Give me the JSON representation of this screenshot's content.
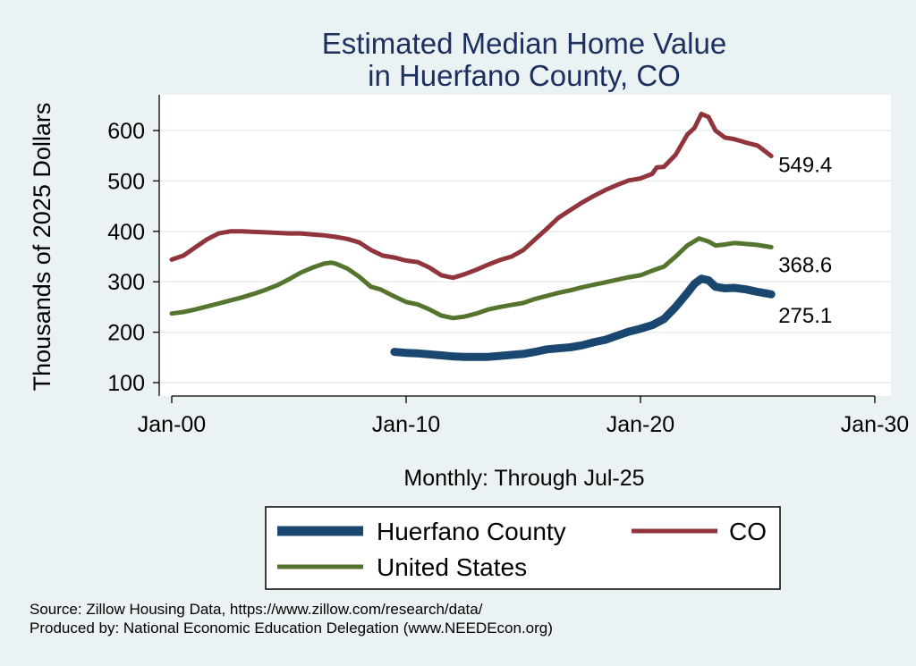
{
  "colors": {
    "huerfano": "#1a476f",
    "co": "#90353b",
    "us": "#55752f",
    "title": "#1d2f5e",
    "background": "#eaf2f3",
    "plot_background": "#ffffff"
  },
  "chart_data": {
    "type": "line",
    "title": [
      "Estimated Median Home Value",
      "in Huerfano County, CO"
    ],
    "ylabel": "Thousands of 2025 Dollars",
    "xlabel": "Monthly: Through Jul-25",
    "ylim": [
      78,
      660
    ],
    "yticks": [
      100,
      200,
      300,
      400,
      500,
      600
    ],
    "xlim": [
      2000,
      2030.8
    ],
    "xticks": [
      {
        "value": 2000,
        "label": "Jan-00"
      },
      {
        "value": 2010,
        "label": "Jan-10"
      },
      {
        "value": 2020,
        "label": "Jan-20"
      },
      {
        "value": 2030,
        "label": "Jan-30"
      }
    ],
    "grid": true,
    "legend_position": "bottom",
    "series": [
      {
        "name": "Huerfano County",
        "color": "#1a476f",
        "end_label": "275.1",
        "points": [
          [
            2009.5,
            161
          ],
          [
            2010.0,
            159
          ],
          [
            2010.5,
            158
          ],
          [
            2011.0,
            156
          ],
          [
            2011.5,
            154
          ],
          [
            2012.0,
            152
          ],
          [
            2012.5,
            151
          ],
          [
            2013.0,
            151
          ],
          [
            2013.5,
            151
          ],
          [
            2014.0,
            153
          ],
          [
            2014.5,
            155
          ],
          [
            2015.0,
            157
          ],
          [
            2015.5,
            161
          ],
          [
            2016.0,
            166
          ],
          [
            2016.5,
            168
          ],
          [
            2017.0,
            170
          ],
          [
            2017.5,
            174
          ],
          [
            2018.0,
            180
          ],
          [
            2018.5,
            185
          ],
          [
            2019.0,
            193
          ],
          [
            2019.5,
            201
          ],
          [
            2020.0,
            207
          ],
          [
            2020.5,
            214
          ],
          [
            2021.0,
            226
          ],
          [
            2021.5,
            250
          ],
          [
            2022.0,
            278
          ],
          [
            2022.3,
            296
          ],
          [
            2022.6,
            306
          ],
          [
            2022.9,
            303
          ],
          [
            2023.2,
            290
          ],
          [
            2023.6,
            287
          ],
          [
            2024.0,
            288
          ],
          [
            2024.5,
            285
          ],
          [
            2025.0,
            280
          ],
          [
            2025.58,
            275.1
          ]
        ]
      },
      {
        "name": "CO",
        "color": "#90353b",
        "end_label": "549.4",
        "points": [
          [
            2000.0,
            344
          ],
          [
            2000.5,
            352
          ],
          [
            2001.0,
            368
          ],
          [
            2001.5,
            384
          ],
          [
            2002.0,
            396
          ],
          [
            2002.5,
            400
          ],
          [
            2003.0,
            400
          ],
          [
            2003.5,
            399
          ],
          [
            2004.0,
            398
          ],
          [
            2004.5,
            397
          ],
          [
            2005.0,
            396
          ],
          [
            2005.5,
            396
          ],
          [
            2006.0,
            394
          ],
          [
            2006.5,
            392
          ],
          [
            2007.0,
            389
          ],
          [
            2007.5,
            385
          ],
          [
            2008.0,
            378
          ],
          [
            2008.5,
            363
          ],
          [
            2009.0,
            352
          ],
          [
            2009.5,
            348
          ],
          [
            2010.0,
            342
          ],
          [
            2010.5,
            339
          ],
          [
            2011.0,
            328
          ],
          [
            2011.5,
            313
          ],
          [
            2012.0,
            308
          ],
          [
            2012.5,
            315
          ],
          [
            2013.0,
            324
          ],
          [
            2013.5,
            334
          ],
          [
            2014.0,
            343
          ],
          [
            2014.5,
            350
          ],
          [
            2015.0,
            363
          ],
          [
            2015.5,
            384
          ],
          [
            2016.0,
            405
          ],
          [
            2016.5,
            427
          ],
          [
            2017.0,
            442
          ],
          [
            2017.5,
            457
          ],
          [
            2018.0,
            470
          ],
          [
            2018.5,
            482
          ],
          [
            2019.0,
            492
          ],
          [
            2019.5,
            501
          ],
          [
            2020.0,
            505
          ],
          [
            2020.5,
            514
          ],
          [
            2020.7,
            527
          ],
          [
            2021.0,
            528
          ],
          [
            2021.5,
            552
          ],
          [
            2022.0,
            592
          ],
          [
            2022.3,
            605
          ],
          [
            2022.6,
            633
          ],
          [
            2022.9,
            627
          ],
          [
            2023.2,
            600
          ],
          [
            2023.6,
            586
          ],
          [
            2024.0,
            583
          ],
          [
            2024.5,
            576
          ],
          [
            2025.0,
            570
          ],
          [
            2025.58,
            549.4
          ]
        ]
      },
      {
        "name": "United States",
        "color": "#55752f",
        "end_label": "368.6",
        "points": [
          [
            2000.0,
            237
          ],
          [
            2000.5,
            240
          ],
          [
            2001.0,
            245
          ],
          [
            2001.5,
            251
          ],
          [
            2002.0,
            257
          ],
          [
            2002.5,
            263
          ],
          [
            2003.0,
            269
          ],
          [
            2003.5,
            276
          ],
          [
            2004.0,
            284
          ],
          [
            2004.5,
            293
          ],
          [
            2005.0,
            305
          ],
          [
            2005.5,
            318
          ],
          [
            2006.0,
            328
          ],
          [
            2006.5,
            336
          ],
          [
            2006.8,
            338
          ],
          [
            2007.0,
            336
          ],
          [
            2007.5,
            326
          ],
          [
            2008.0,
            310
          ],
          [
            2008.5,
            290
          ],
          [
            2008.9,
            285
          ],
          [
            2009.5,
            271
          ],
          [
            2010.0,
            260
          ],
          [
            2010.5,
            255
          ],
          [
            2011.0,
            245
          ],
          [
            2011.5,
            233
          ],
          [
            2012.0,
            228
          ],
          [
            2012.5,
            231
          ],
          [
            2013.0,
            237
          ],
          [
            2013.5,
            245
          ],
          [
            2014.0,
            250
          ],
          [
            2014.5,
            254
          ],
          [
            2015.0,
            258
          ],
          [
            2015.5,
            266
          ],
          [
            2016.0,
            272
          ],
          [
            2016.5,
            278
          ],
          [
            2017.0,
            283
          ],
          [
            2017.5,
            289
          ],
          [
            2018.0,
            294
          ],
          [
            2018.5,
            299
          ],
          [
            2019.0,
            304
          ],
          [
            2019.5,
            309
          ],
          [
            2020.0,
            313
          ],
          [
            2020.5,
            322
          ],
          [
            2021.0,
            330
          ],
          [
            2021.5,
            350
          ],
          [
            2022.0,
            372
          ],
          [
            2022.5,
            386
          ],
          [
            2022.9,
            380
          ],
          [
            2023.2,
            372
          ],
          [
            2023.6,
            374
          ],
          [
            2024.0,
            377
          ],
          [
            2024.5,
            375
          ],
          [
            2025.0,
            373
          ],
          [
            2025.58,
            368.6
          ]
        ]
      }
    ]
  },
  "legend": {
    "items": [
      "Huerfano County",
      "CO",
      "United States"
    ]
  },
  "footer": {
    "source": "Source: Zillow Housing Data, https://www.zillow.com/research/data/",
    "produced_by": "Produced by: National Economic Education Delegation (www.NEEDEcon.org)"
  }
}
